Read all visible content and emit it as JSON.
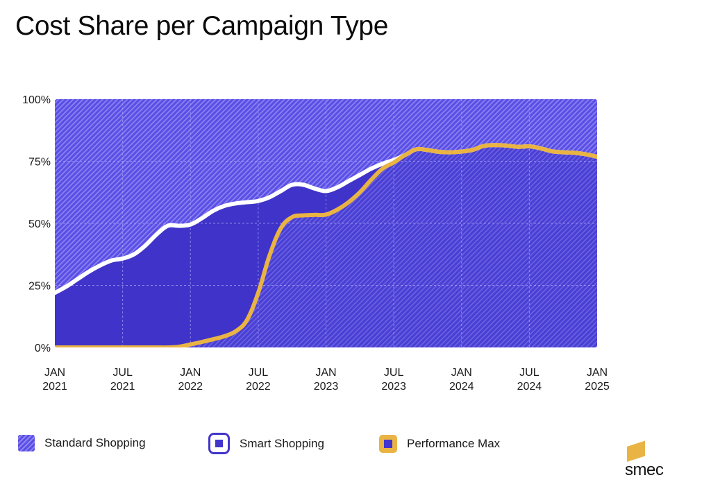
{
  "title": "Cost Share per Campaign Type",
  "colors": {
    "standard_fill": "#5a4ee6",
    "standard_hatch": "#8d86f0",
    "smart_fill": "#4033c9",
    "smart_line": "#ffffff",
    "pmax_line": "#e9b443",
    "grid": "#a9a3f5",
    "logo_accent": "#e9b443"
  },
  "chart_data": {
    "type": "area",
    "title": "Cost Share per Campaign Type",
    "xlabel": "",
    "ylabel": "",
    "ylim": [
      0,
      100
    ],
    "yticks": [
      {
        "value": 0,
        "label": "0%"
      },
      {
        "value": 25,
        "label": "25%"
      },
      {
        "value": 50,
        "label": "50%"
      },
      {
        "value": 75,
        "label": "75%"
      },
      {
        "value": 100,
        "label": "100%"
      }
    ],
    "xlim_months": [
      0,
      48
    ],
    "xticks": [
      {
        "month": 0,
        "line1": "JAN",
        "line2": "2021"
      },
      {
        "month": 6,
        "line1": "JUL",
        "line2": "2021"
      },
      {
        "month": 12,
        "line1": "JAN",
        "line2": "2022"
      },
      {
        "month": 18,
        "line1": "JUL",
        "line2": "2022"
      },
      {
        "month": 24,
        "line1": "JAN",
        "line2": "2023"
      },
      {
        "month": 30,
        "line1": "JUL",
        "line2": "2023"
      },
      {
        "month": 36,
        "line1": "JAN",
        "line2": "2024"
      },
      {
        "month": 42,
        "line1": "JUL",
        "line2": "2024"
      },
      {
        "month": 48,
        "line1": "JAN",
        "line2": "2025"
      }
    ],
    "grid": true,
    "stacked": true,
    "legend_position": "bottom",
    "x_months_from_jan_2021": [
      0,
      1,
      2,
      3,
      4,
      5,
      6,
      7,
      8,
      9,
      10,
      11,
      12,
      13,
      14,
      15,
      16,
      17,
      18,
      19,
      20,
      21,
      22,
      23,
      24,
      25,
      26,
      27,
      28,
      29,
      30,
      31,
      32,
      33,
      34,
      35,
      36,
      37,
      38,
      39,
      40,
      41,
      42,
      43,
      44,
      45,
      46,
      47,
      48
    ],
    "series": [
      {
        "name": "Performance Max",
        "description": "share of cost (%), bottom layer",
        "values": [
          0,
          0,
          0,
          0,
          0,
          0,
          0,
          0,
          0,
          0,
          0,
          0.3,
          1.2,
          2.2,
          3.3,
          4.5,
          6.5,
          11,
          22,
          37,
          48,
          52.5,
          53.2,
          53.4,
          53.5,
          55.5,
          58.5,
          62.5,
          67.5,
          72,
          74.5,
          77.5,
          79.8,
          79.5,
          78.8,
          78.6,
          78.9,
          79.6,
          81.2,
          81.5,
          81.3,
          80.8,
          81,
          80.2,
          79,
          78.6,
          78.4,
          77.8,
          76.8
        ]
      },
      {
        "name": "Smart Shopping",
        "description": "cumulative top edge (PMax + Smart, %)",
        "values": [
          22,
          24.5,
          27.5,
          30.5,
          33,
          35,
          35.8,
          37.5,
          41,
          45.5,
          49,
          49,
          49.5,
          52,
          55,
          57,
          58,
          58.5,
          59,
          60.5,
          63,
          65.5,
          65.5,
          64,
          63,
          64.5,
          67,
          69.5,
          72,
          74,
          75.5,
          77.5,
          79.8,
          79.5,
          78.8,
          78.6,
          78.9,
          79.6,
          81.2,
          81.5,
          81.3,
          80.8,
          81,
          80.2,
          79,
          78.6,
          78.4,
          77.8,
          76.8
        ]
      },
      {
        "name": "Standard Shopping",
        "description": "remainder up to 100%",
        "values": [
          100,
          100,
          100,
          100,
          100,
          100,
          100,
          100,
          100,
          100,
          100,
          100,
          100,
          100,
          100,
          100,
          100,
          100,
          100,
          100,
          100,
          100,
          100,
          100,
          100,
          100,
          100,
          100,
          100,
          100,
          100,
          100,
          100,
          100,
          100,
          100,
          100,
          100,
          100,
          100,
          100,
          100,
          100,
          100,
          100,
          100,
          100,
          100,
          100
        ]
      }
    ]
  },
  "legend": [
    {
      "label": "Standard Shopping",
      "icon": "hatched-square"
    },
    {
      "label": "Smart Shopping",
      "icon": "outlined-square"
    },
    {
      "label": "Performance Max",
      "icon": "yellow-square"
    }
  ],
  "logo": {
    "text": "smec"
  }
}
